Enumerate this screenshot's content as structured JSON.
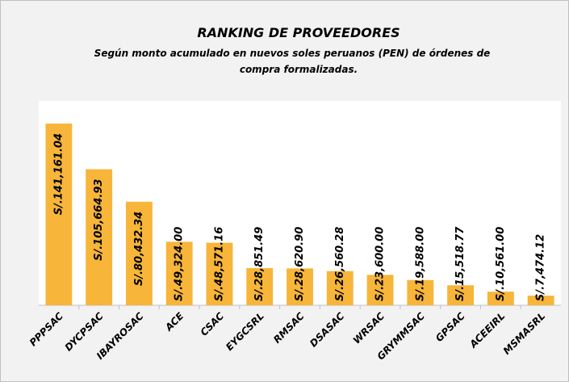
{
  "chart_data": {
    "type": "bar",
    "title": "RANKING DE PROVEEDORES",
    "subtitle": [
      "Según monto acumulado en nuevos soles peruanos (PEN) de órdenes de",
      "compra formalizadas."
    ],
    "categories": [
      "PPPSAC",
      "DYCPSAC",
      "IBAYROSAC",
      "ACE",
      "CSAC",
      "EYGCSRL",
      "RMSAC",
      "DSASAC",
      "WRSAC",
      "GRYMMSAC",
      "GPSAC",
      "ACEEIRL",
      "MSMASRL"
    ],
    "values": [
      141161.04,
      105664.93,
      80432.34,
      49324.0,
      48571.16,
      28851.49,
      28620.9,
      26560.28,
      23600.0,
      19588.0,
      15518.77,
      10561.0,
      7474.12
    ],
    "value_labels": [
      "S/.141,161.04",
      "S/.105,664.93",
      "S/.80,432.34",
      "S/.49,324.00",
      "S/.48,571.16",
      "S/.28,851.49",
      "S/.28,620.90",
      "S/.26,560.28",
      "S/.23,600.00",
      "S/.19,588.00",
      "S/.15,518.77",
      "S/.10,561.00",
      "S/.7,474.12"
    ],
    "color": "#f7b539"
  }
}
